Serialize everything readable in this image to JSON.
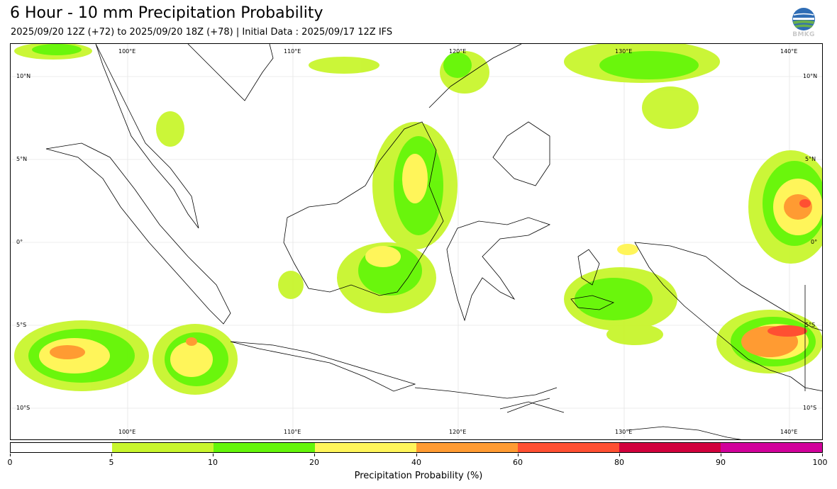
{
  "header": {
    "title": "6 Hour - 10 mm Precipitation Probability",
    "subtitle": "2025/09/20 12Z (+72) to 2025/09/20 18Z (+78) | Initial Data : 2025/09/17 12Z IFS"
  },
  "logo": {
    "text": "BMKG"
  },
  "map": {
    "lon_labels": [
      "100°E",
      "110°E",
      "120°E",
      "130°E",
      "140°E"
    ],
    "lat_labels": [
      "10°N",
      "5°N",
      "0°",
      "5°S",
      "10°S"
    ],
    "land_color": "#ffffff",
    "coast_color": "#000000"
  },
  "colorbar": {
    "label": "Precipitation Probability (%)",
    "ticks": [
      "0",
      "5",
      "10",
      "20",
      "40",
      "60",
      "80",
      "90",
      "100"
    ],
    "colors": [
      "#ffffff",
      "#c8f52d",
      "#64f50a",
      "#fff55a",
      "#ff9b32",
      "#ff5032",
      "#d2003c",
      "#d2009b"
    ]
  }
}
